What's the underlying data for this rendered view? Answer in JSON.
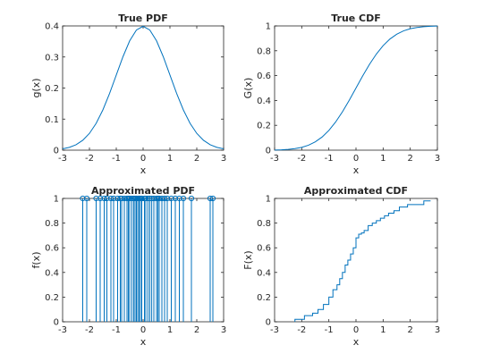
{
  "chart_data": [
    {
      "id": "true-pdf",
      "type": "line",
      "title": "True PDF",
      "xlabel": "x",
      "ylabel": "g(x)",
      "xlim": [
        -3,
        3
      ],
      "ylim": [
        0,
        0.4
      ],
      "xticks": [
        "-3",
        "-2",
        "-1",
        "0",
        "1",
        "2",
        "3"
      ],
      "yticks": [
        "0",
        "0.1",
        "0.2",
        "0.3",
        "0.4"
      ],
      "grid": false,
      "series": [
        {
          "x": [
            -3,
            -2.75,
            -2.5,
            -2.25,
            -2,
            -1.75,
            -1.5,
            -1.25,
            -1,
            -0.75,
            -0.5,
            -0.25,
            0,
            0.25,
            0.5,
            0.75,
            1,
            1.25,
            1.5,
            1.75,
            2,
            2.25,
            2.5,
            2.75,
            3
          ],
          "values": [
            0.0044,
            0.0091,
            0.0175,
            0.0317,
            0.054,
            0.0863,
            0.1295,
            0.1826,
            0.242,
            0.3011,
            0.3521,
            0.3867,
            0.3989,
            0.3867,
            0.3521,
            0.3011,
            0.242,
            0.1826,
            0.1295,
            0.0863,
            0.054,
            0.0317,
            0.0175,
            0.0091,
            0.0044
          ]
        }
      ]
    },
    {
      "id": "true-cdf",
      "type": "line",
      "title": "True CDF",
      "xlabel": "x",
      "ylabel": "G(x)",
      "xlim": [
        -3,
        3
      ],
      "ylim": [
        0,
        1
      ],
      "xticks": [
        "-3",
        "-2",
        "-1",
        "0",
        "1",
        "2",
        "3"
      ],
      "yticks": [
        "0",
        "0.2",
        "0.4",
        "0.6",
        "0.8",
        "1"
      ],
      "grid": false,
      "series": [
        {
          "x": [
            -3,
            -2.75,
            -2.5,
            -2.25,
            -2,
            -1.75,
            -1.5,
            -1.25,
            -1,
            -0.75,
            -0.5,
            -0.25,
            0,
            0.25,
            0.5,
            0.75,
            1,
            1.25,
            1.5,
            1.75,
            2,
            2.25,
            2.5,
            2.75,
            3
          ],
          "values": [
            0.0013,
            0.003,
            0.0062,
            0.0122,
            0.0228,
            0.0401,
            0.0668,
            0.1056,
            0.1587,
            0.2266,
            0.3085,
            0.4013,
            0.5,
            0.5987,
            0.6915,
            0.7734,
            0.8413,
            0.8944,
            0.9332,
            0.9599,
            0.9772,
            0.9878,
            0.9938,
            0.997,
            0.9987
          ]
        }
      ]
    },
    {
      "id": "approx-pdf",
      "type": "stem",
      "title": "Approximated PDF",
      "xlabel": "x",
      "ylabel": "f(x)",
      "xlim": [
        -3,
        3
      ],
      "ylim": [
        0,
        1
      ],
      "xticks": [
        "-3",
        "-2",
        "-1",
        "0",
        "1",
        "2",
        "3"
      ],
      "yticks": [
        "0",
        "0.2",
        "0.4",
        "0.6",
        "0.8",
        "1"
      ],
      "grid": false,
      "series": [
        {
          "x": [
            -2.25,
            -2.1,
            -1.75,
            -1.6,
            -1.45,
            -1.35,
            -1.2,
            -1.1,
            -0.95,
            -0.85,
            -0.8,
            -0.7,
            -0.6,
            -0.55,
            -0.5,
            -0.42,
            -0.35,
            -0.3,
            -0.25,
            -0.2,
            -0.15,
            -0.1,
            -0.05,
            0.05,
            0.1,
            0.18,
            0.25,
            0.32,
            0.4,
            0.5,
            0.55,
            0.6,
            0.7,
            0.8,
            0.9,
            1.05,
            1.2,
            1.35,
            1.5,
            1.8,
            2.5,
            2.6
          ],
          "values": [
            1,
            1,
            1,
            1,
            1,
            1,
            1,
            1,
            1,
            1,
            1,
            1,
            1,
            1,
            1,
            1,
            1,
            1,
            1,
            1,
            1,
            1,
            1,
            1,
            1,
            1,
            1,
            1,
            1,
            1,
            1,
            1,
            1,
            1,
            1,
            1,
            1,
            1,
            1,
            1,
            1,
            1
          ]
        }
      ]
    },
    {
      "id": "approx-cdf",
      "type": "line",
      "title": "Approximated CDF",
      "xlabel": "x",
      "ylabel": "F(x)",
      "xlim": [
        -3,
        3
      ],
      "ylim": [
        0,
        1
      ],
      "xticks": [
        "-3",
        "-2",
        "-1",
        "0",
        "1",
        "2",
        "3"
      ],
      "yticks": [
        "0",
        "0.2",
        "0.4",
        "0.6",
        "0.8",
        "1"
      ],
      "grid": false,
      "series": [
        {
          "x": [
            -2.25,
            -2.25,
            -1.9,
            -1.9,
            -1.6,
            -1.6,
            -1.4,
            -1.4,
            -1.2,
            -1.2,
            -1.0,
            -1.0,
            -0.85,
            -0.85,
            -0.7,
            -0.7,
            -0.6,
            -0.6,
            -0.5,
            -0.5,
            -0.4,
            -0.4,
            -0.3,
            -0.3,
            -0.2,
            -0.2,
            -0.1,
            -0.1,
            0.0,
            0.0,
            0.1,
            0.1,
            0.2,
            0.2,
            0.3,
            0.3,
            0.45,
            0.45,
            0.6,
            0.6,
            0.75,
            0.75,
            0.9,
            0.9,
            1.05,
            1.05,
            1.2,
            1.2,
            1.4,
            1.4,
            1.6,
            1.6,
            1.9,
            1.9,
            2.5,
            2.5,
            2.75
          ],
          "values": [
            0,
            0.02,
            0.02,
            0.05,
            0.05,
            0.07,
            0.07,
            0.1,
            0.1,
            0.14,
            0.14,
            0.2,
            0.2,
            0.26,
            0.26,
            0.3,
            0.3,
            0.35,
            0.35,
            0.4,
            0.4,
            0.46,
            0.46,
            0.5,
            0.5,
            0.55,
            0.55,
            0.6,
            0.6,
            0.68,
            0.68,
            0.71,
            0.71,
            0.72,
            0.72,
            0.74,
            0.74,
            0.78,
            0.78,
            0.8,
            0.8,
            0.82,
            0.82,
            0.84,
            0.84,
            0.86,
            0.86,
            0.88,
            0.88,
            0.9,
            0.9,
            0.93,
            0.93,
            0.95,
            0.95,
            0.98,
            0.98
          ]
        }
      ]
    }
  ]
}
